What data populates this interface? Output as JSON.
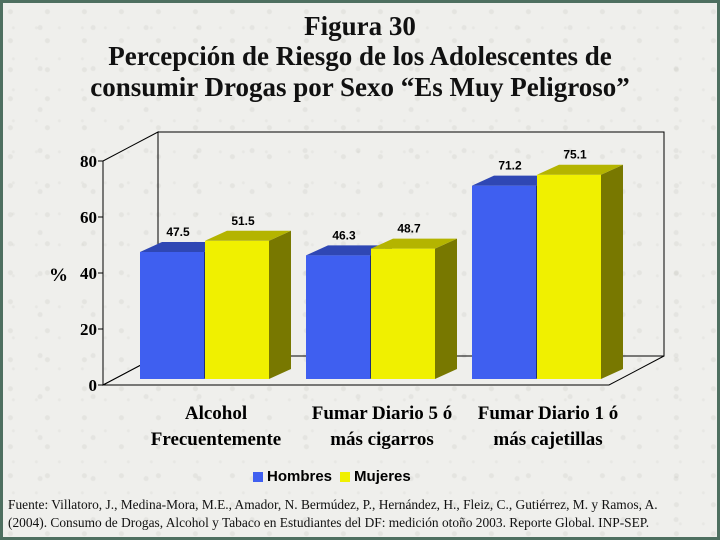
{
  "title": {
    "line1": "Figura 30",
    "line2": "Percepción de Riesgo de los Adolescentes de",
    "line3": "consumir Drogas por Sexo “Es Muy Peligroso”"
  },
  "colors": {
    "frame": "#4e6f60",
    "hombres": "#3f5ff0",
    "mujeres": "#f0f000"
  },
  "chart_data": {
    "type": "bar",
    "title": "Figura 30 Percepción de Riesgo de los Adolescentes de consumir Drogas por Sexo “Es Muy Peligroso”",
    "ylabel": "%",
    "ylim": [
      0,
      80
    ],
    "yticks": [
      "0",
      "20",
      "40",
      "60",
      "80"
    ],
    "categories": [
      [
        "Alcohol",
        "Frecuentemente"
      ],
      [
        "Fumar Diario 5 ó",
        "más cigarros"
      ],
      [
        "Fumar Diario 1 ó",
        "más cajetillas"
      ]
    ],
    "series": [
      {
        "name": "Hombres",
        "values": [
          47.5,
          46.3,
          71.2
        ],
        "labels": [
          "47.5",
          "46.3",
          "71.2"
        ]
      },
      {
        "name": "Mujeres",
        "values": [
          51.5,
          48.7,
          75.1
        ],
        "labels": [
          "51.5",
          "48.7",
          "75.1"
        ]
      }
    ],
    "legend": "bottom",
    "grid": false
  },
  "source": {
    "line1": "Fuente: Villatoro, J., Medina-Mora, M.E., Amador, N. Bermúdez, P., Hernández, H., Fleiz, C., Gutiérrez, M. y Ramos, A.",
    "line2": "(2004). Consumo de Drogas, Alcohol y Tabaco en Estudiantes del DF: medición otoño 2003. Reporte Global. INP-SEP."
  }
}
